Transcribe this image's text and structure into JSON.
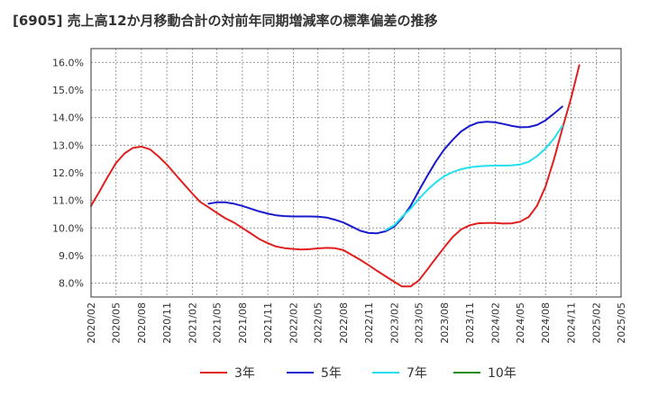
{
  "chart_data": {
    "type": "line",
    "title": "[6905]  売上高12か月移動合計の対前年同期増減率の標準偏差の推移",
    "xlabel": "",
    "ylabel": "",
    "ylim": [
      7.5,
      16.5
    ],
    "yticks": [
      8.0,
      9.0,
      10.0,
      11.0,
      12.0,
      13.0,
      14.0,
      15.0,
      16.0
    ],
    "ytick_labels": [
      "8.0%",
      "9.0%",
      "10.0%",
      "11.0%",
      "12.0%",
      "13.0%",
      "14.0%",
      "15.0%",
      "16.0%"
    ],
    "xticks": [
      "2020/02",
      "2020/05",
      "2020/08",
      "2020/11",
      "2021/02",
      "2021/05",
      "2021/08",
      "2021/11",
      "2022/02",
      "2022/05",
      "2022/08",
      "2022/11",
      "2023/02",
      "2023/05",
      "2023/08",
      "2023/11",
      "2024/02",
      "2024/05",
      "2024/08",
      "2024/11",
      "2025/02",
      "2025/05"
    ],
    "grid": true,
    "legend_position": "bottom",
    "series": [
      {
        "name": "3年",
        "color": "#e02020",
        "points": [
          [
            "2020/02",
            10.8
          ],
          [
            "2020/03",
            11.3
          ],
          [
            "2020/04",
            11.85
          ],
          [
            "2020/05",
            12.35
          ],
          [
            "2020/06",
            12.7
          ],
          [
            "2020/07",
            12.9
          ],
          [
            "2020/08",
            12.95
          ],
          [
            "2020/09",
            12.85
          ],
          [
            "2020/10",
            12.6
          ],
          [
            "2020/11",
            12.3
          ],
          [
            "2020/12",
            11.95
          ],
          [
            "2021/01",
            11.6
          ],
          [
            "2021/02",
            11.25
          ],
          [
            "2021/03",
            10.95
          ],
          [
            "2021/04",
            10.75
          ],
          [
            "2021/05",
            10.55
          ],
          [
            "2021/06",
            10.35
          ],
          [
            "2021/07",
            10.2
          ],
          [
            "2021/08",
            10.0
          ],
          [
            "2021/09",
            9.8
          ],
          [
            "2021/10",
            9.6
          ],
          [
            "2021/11",
            9.45
          ],
          [
            "2021/12",
            9.33
          ],
          [
            "2022/01",
            9.27
          ],
          [
            "2022/02",
            9.24
          ],
          [
            "2022/03",
            9.22
          ],
          [
            "2022/04",
            9.23
          ],
          [
            "2022/05",
            9.26
          ],
          [
            "2022/06",
            9.28
          ],
          [
            "2022/07",
            9.27
          ],
          [
            "2022/08",
            9.2
          ],
          [
            "2022/09",
            9.02
          ],
          [
            "2022/10",
            8.85
          ],
          [
            "2022/11",
            8.65
          ],
          [
            "2022/12",
            8.45
          ],
          [
            "2023/01",
            8.25
          ],
          [
            "2023/02",
            8.05
          ],
          [
            "2023/03",
            7.88
          ],
          [
            "2023/04",
            7.88
          ],
          [
            "2023/05",
            8.1
          ],
          [
            "2023/06",
            8.5
          ],
          [
            "2023/07",
            8.9
          ],
          [
            "2023/08",
            9.3
          ],
          [
            "2023/09",
            9.68
          ],
          [
            "2023/10",
            9.95
          ],
          [
            "2023/11",
            10.1
          ],
          [
            "2023/12",
            10.17
          ],
          [
            "2024/01",
            10.18
          ],
          [
            "2024/02",
            10.18
          ],
          [
            "2024/03",
            10.16
          ],
          [
            "2024/04",
            10.17
          ],
          [
            "2024/05",
            10.23
          ],
          [
            "2024/06",
            10.4
          ],
          [
            "2024/07",
            10.8
          ],
          [
            "2024/08",
            11.5
          ],
          [
            "2024/09",
            12.5
          ],
          [
            "2024/10",
            13.6
          ],
          [
            "2024/11",
            14.7
          ],
          [
            "2024/12",
            15.9
          ]
        ]
      },
      {
        "name": "5年",
        "color": "#1a1acc",
        "points": [
          [
            "2021/04",
            10.88
          ],
          [
            "2021/05",
            10.93
          ],
          [
            "2021/06",
            10.93
          ],
          [
            "2021/07",
            10.88
          ],
          [
            "2021/08",
            10.8
          ],
          [
            "2021/09",
            10.7
          ],
          [
            "2021/10",
            10.6
          ],
          [
            "2021/11",
            10.52
          ],
          [
            "2021/12",
            10.46
          ],
          [
            "2022/01",
            10.43
          ],
          [
            "2022/02",
            10.42
          ],
          [
            "2022/03",
            10.42
          ],
          [
            "2022/04",
            10.42
          ],
          [
            "2022/05",
            10.41
          ],
          [
            "2022/06",
            10.38
          ],
          [
            "2022/07",
            10.3
          ],
          [
            "2022/08",
            10.2
          ],
          [
            "2022/09",
            10.05
          ],
          [
            "2022/10",
            9.9
          ],
          [
            "2022/11",
            9.82
          ],
          [
            "2022/12",
            9.81
          ],
          [
            "2023/01",
            9.88
          ],
          [
            "2023/02",
            10.05
          ],
          [
            "2023/03",
            10.35
          ],
          [
            "2023/04",
            10.8
          ],
          [
            "2023/05",
            11.35
          ],
          [
            "2023/06",
            11.9
          ],
          [
            "2023/07",
            12.4
          ],
          [
            "2023/08",
            12.85
          ],
          [
            "2023/09",
            13.2
          ],
          [
            "2023/10",
            13.5
          ],
          [
            "2023/11",
            13.7
          ],
          [
            "2023/12",
            13.82
          ],
          [
            "2024/01",
            13.85
          ],
          [
            "2024/02",
            13.83
          ],
          [
            "2024/03",
            13.77
          ],
          [
            "2024/04",
            13.7
          ],
          [
            "2024/05",
            13.65
          ],
          [
            "2024/06",
            13.66
          ],
          [
            "2024/07",
            13.73
          ],
          [
            "2024/08",
            13.9
          ],
          [
            "2024/09",
            14.15
          ],
          [
            "2024/10",
            14.4
          ]
        ]
      },
      {
        "name": "7年",
        "color": "#22e0ee",
        "points": [
          [
            "2023/01",
            9.92
          ],
          [
            "2023/02",
            10.1
          ],
          [
            "2023/03",
            10.4
          ],
          [
            "2023/04",
            10.7
          ],
          [
            "2023/05",
            11.05
          ],
          [
            "2023/06",
            11.38
          ],
          [
            "2023/07",
            11.65
          ],
          [
            "2023/08",
            11.88
          ],
          [
            "2023/09",
            12.03
          ],
          [
            "2023/10",
            12.13
          ],
          [
            "2023/11",
            12.2
          ],
          [
            "2023/12",
            12.23
          ],
          [
            "2024/01",
            12.25
          ],
          [
            "2024/02",
            12.26
          ],
          [
            "2024/03",
            12.26
          ],
          [
            "2024/04",
            12.27
          ],
          [
            "2024/05",
            12.3
          ],
          [
            "2024/06",
            12.4
          ],
          [
            "2024/07",
            12.6
          ],
          [
            "2024/08",
            12.88
          ],
          [
            "2024/09",
            13.25
          ],
          [
            "2024/10",
            13.7
          ]
        ]
      },
      {
        "name": "10年",
        "color": "#228b22",
        "points": []
      }
    ]
  }
}
